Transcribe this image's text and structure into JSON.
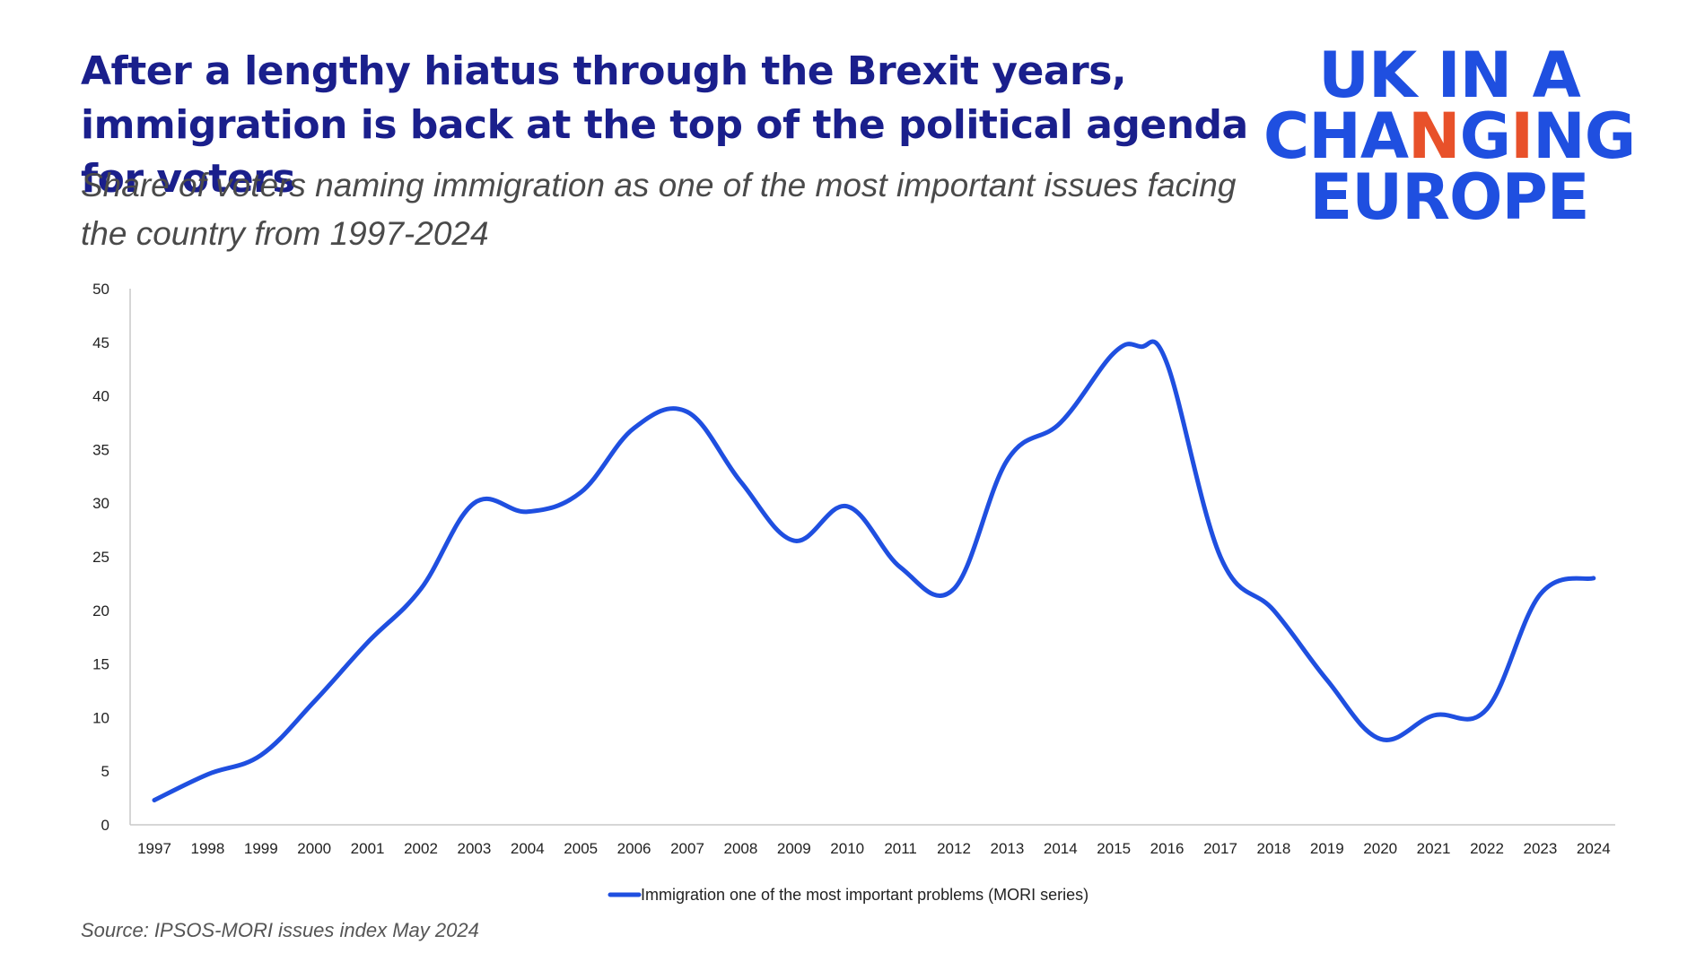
{
  "header": {
    "title": "After a lengthy hiatus through the Brexit years, immigration is back at the top of the political agenda for voters",
    "subtitle": "Share of voters naming immigration as one of the most important issues facing the country from 1997-2024"
  },
  "logo": {
    "line1": "UK IN A",
    "line2_parts": [
      {
        "text": "CH",
        "color": "#1f4fe0"
      },
      {
        "text": "A",
        "color": "#1f4fe0"
      },
      {
        "text": "N",
        "color": "#e8512a"
      },
      {
        "text": "G",
        "color": "#1f4fe0"
      },
      {
        "text": "I",
        "color": "#e8512a"
      },
      {
        "text": "NG",
        "color": "#1f4fe0"
      }
    ],
    "line3": "EUROPE",
    "color": "#1f4fe0",
    "accent": "#e8512a"
  },
  "chart_data": {
    "type": "line",
    "x": [
      "1997",
      "1998",
      "1999",
      "2000",
      "2001",
      "2002",
      "2003",
      "2004",
      "2005",
      "2006",
      "2007",
      "2008",
      "2009",
      "2010",
      "2011",
      "2012",
      "2013",
      "2014",
      "2015",
      "2016",
      "2017",
      "2018",
      "2019",
      "2020",
      "2021",
      "2022",
      "2023",
      "2024"
    ],
    "series": [
      {
        "name": "Immigration one of the most important problems (MORI series)",
        "color": "#1f4fe0",
        "points": [
          [
            1997.0,
            2.3
          ],
          [
            1998.0,
            4.7
          ],
          [
            1999.0,
            6.5
          ],
          [
            2000.0,
            11.5
          ],
          [
            2001.0,
            17.0
          ],
          [
            2002.0,
            22.0
          ],
          [
            2003.0,
            30.0
          ],
          [
            2004.0,
            29.2
          ],
          [
            2005.0,
            31.0
          ],
          [
            2006.0,
            37.0
          ],
          [
            2007.0,
            38.5
          ],
          [
            2008.0,
            32.0
          ],
          [
            2009.0,
            26.5
          ],
          [
            2010.0,
            29.7
          ],
          [
            2011.0,
            24.0
          ],
          [
            2012.0,
            22.0
          ],
          [
            2013.0,
            34.0
          ],
          [
            2014.0,
            37.5
          ],
          [
            2015.0,
            44.0
          ],
          [
            2015.5,
            44.6
          ],
          [
            2016.0,
            43.0
          ],
          [
            2017.0,
            25.0
          ],
          [
            2018.0,
            20.0
          ],
          [
            2019.0,
            13.5
          ],
          [
            2020.0,
            8.0
          ],
          [
            2021.0,
            10.2
          ],
          [
            2022.0,
            10.8
          ],
          [
            2023.0,
            21.5
          ],
          [
            2024.0,
            23.0
          ]
        ]
      }
    ],
    "y_ticks": [
      "0",
      "5",
      "10",
      "15",
      "20",
      "25",
      "30",
      "35",
      "40",
      "45",
      "50"
    ],
    "ylim": [
      0,
      50
    ],
    "grid": false,
    "legend_position": "bottom"
  },
  "source": "Source: IPSOS-MORI issues index May 2024"
}
